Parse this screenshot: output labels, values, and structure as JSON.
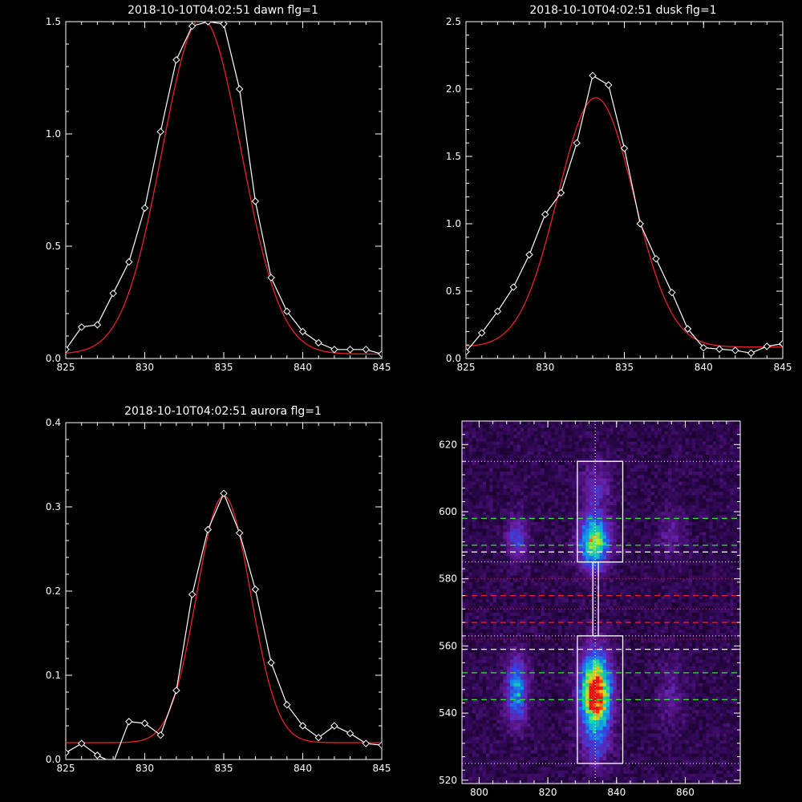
{
  "chart_data": [
    {
      "type": "line",
      "title": "2018-10-10T04:02:51 dawn flg=1",
      "xlim": [
        825,
        845
      ],
      "ylim": [
        0,
        1.5
      ],
      "xticks": [
        "825",
        "830",
        "835",
        "840",
        "845"
      ],
      "yticks": [
        "0.0",
        "0.5",
        "1.0",
        "1.5"
      ],
      "series": [
        {
          "role": "measured",
          "color": "#ffffff",
          "x": [
            825,
            826,
            827,
            828,
            829,
            830,
            831,
            832,
            833,
            834,
            835,
            836,
            837,
            838,
            839,
            840,
            841,
            842,
            843,
            844,
            845
          ],
          "y": [
            0.04,
            0.14,
            0.15,
            0.29,
            0.43,
            0.67,
            1.01,
            1.33,
            1.48,
            1.5,
            1.49,
            1.2,
            0.7,
            0.36,
            0.21,
            0.12,
            0.07,
            0.04,
            0.04,
            0.04,
            0.02
          ]
        },
        {
          "role": "fit",
          "color": "#e8232b",
          "curve": {
            "amplitude": 1.495,
            "center": 833.6,
            "sigma": 2.5,
            "baseline": 0.02
          }
        }
      ]
    },
    {
      "type": "line",
      "title": "2018-10-10T04:02:51 dusk flg=1",
      "xlim": [
        825,
        845
      ],
      "ylim": [
        0,
        2.5
      ],
      "xticks": [
        "825",
        "830",
        "835",
        "840",
        "845"
      ],
      "yticks": [
        "0.0",
        "0.5",
        "1.0",
        "1.5",
        "2.0",
        "2.5"
      ],
      "series": [
        {
          "role": "measured",
          "color": "#ffffff",
          "x": [
            825,
            826,
            827,
            828,
            829,
            830,
            831,
            832,
            833,
            834,
            835,
            836,
            837,
            838,
            839,
            840,
            841,
            842,
            843,
            844,
            845
          ],
          "y": [
            0.05,
            0.19,
            0.35,
            0.53,
            0.77,
            1.07,
            1.23,
            1.6,
            2.1,
            2.03,
            1.56,
            1.0,
            0.74,
            0.49,
            0.22,
            0.08,
            0.07,
            0.06,
            0.04,
            0.09,
            0.11
          ]
        },
        {
          "role": "fit",
          "color": "#e8232b",
          "curve": {
            "amplitude": 1.85,
            "center": 833.2,
            "sigma": 2.4,
            "baseline": 0.085
          }
        }
      ]
    },
    {
      "type": "line",
      "title": "2018-10-10T04:02:51 aurora flg=1",
      "xlim": [
        825,
        845
      ],
      "ylim": [
        0,
        0.4
      ],
      "xticks": [
        "825",
        "830",
        "835",
        "840",
        "845"
      ],
      "yticks": [
        "0.0",
        "0.1",
        "0.2",
        "0.3",
        "0.4"
      ],
      "series": [
        {
          "role": "measured",
          "color": "#ffffff",
          "x": [
            825,
            826,
            827,
            828,
            829,
            830,
            831,
            832,
            833,
            834,
            835,
            836,
            837,
            838,
            839,
            840,
            841,
            842,
            843,
            844,
            845
          ],
          "y": [
            0.008,
            0.019,
            0.005,
            -0.004,
            0.045,
            0.043,
            0.029,
            0.082,
            0.196,
            0.273,
            0.316,
            0.269,
            0.202,
            0.115,
            0.065,
            0.04,
            0.026,
            0.04,
            0.031,
            0.019,
            0.017
          ]
        },
        {
          "role": "fit",
          "color": "#e8232b",
          "curve": {
            "amplitude": 0.293,
            "center": 835.0,
            "sigma": 1.7,
            "baseline": 0.02
          }
        }
      ]
    },
    {
      "type": "heatmap",
      "title": "",
      "xlim": [
        795,
        876
      ],
      "ylim": [
        519,
        627
      ],
      "xticks": [
        "800",
        "820",
        "840",
        "860"
      ],
      "yticks": [
        "520",
        "540",
        "560",
        "580",
        "600",
        "620"
      ],
      "blobs": [
        {
          "x": 834,
          "y": 546,
          "sx": 3.0,
          "sy": 8,
          "a": 1.0
        },
        {
          "x": 833.5,
          "y": 591,
          "sx": 3.0,
          "sy": 5.5,
          "a": 0.7
        },
        {
          "x": 811,
          "y": 547,
          "sx": 2.2,
          "sy": 7,
          "a": 0.45
        },
        {
          "x": 811,
          "y": 592,
          "sx": 2.2,
          "sy": 4.5,
          "a": 0.28
        },
        {
          "x": 856,
          "y": 546,
          "sx": 2.5,
          "sy": 7,
          "a": 0.15
        },
        {
          "x": 856,
          "y": 593,
          "sx": 2.5,
          "sy": 5,
          "a": 0.15
        },
        {
          "x": 834,
          "y": 608,
          "sx": 3.0,
          "sy": 5,
          "a": 0.2
        },
        {
          "x": 834,
          "y": 530,
          "sx": 3.0,
          "sy": 5,
          "a": 0.16
        }
      ],
      "overlays": {
        "white_boxes": [
          {
            "x0": 828.6,
            "x1": 841.8,
            "y0": 585,
            "y1": 615
          },
          {
            "x0": 828.6,
            "x1": 841.8,
            "y0": 525,
            "y1": 563
          }
        ],
        "connector": {
          "x0": 833.1,
          "x1": 834.7,
          "y0": 563,
          "y1": 585
        },
        "center_line_x": 833.8,
        "dotted_white_y": [
          615,
          585,
          563,
          525
        ],
        "dotted_red_y": [
          580,
          571,
          562
        ],
        "dashed_green_y": [
          598,
          590,
          552,
          544
        ],
        "dashed_white_y": [
          588,
          559
        ],
        "dashed_red_y": [
          575,
          567
        ]
      }
    }
  ]
}
